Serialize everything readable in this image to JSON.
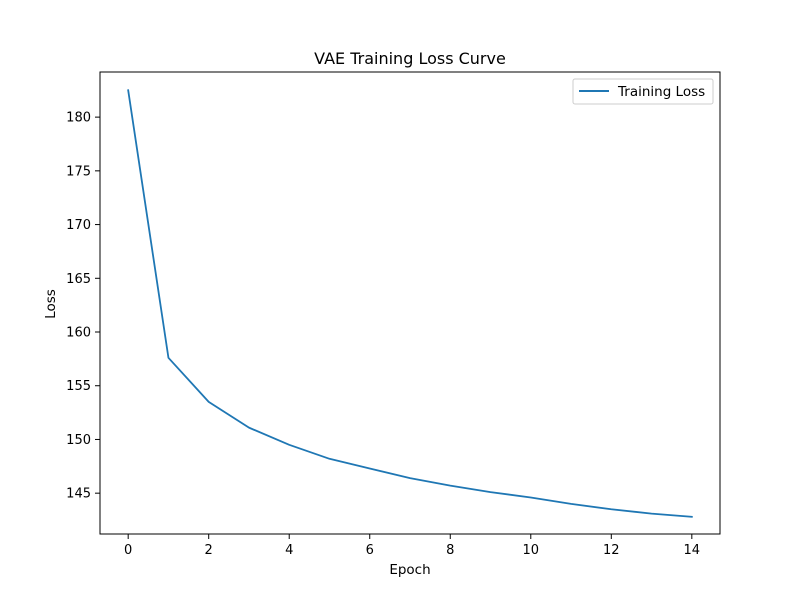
{
  "chart_data": {
    "type": "line",
    "title": "VAE Training Loss Curve",
    "xlabel": "Epoch",
    "ylabel": "Loss",
    "xlim": [
      -0.7,
      14.7
    ],
    "ylim": [
      141.2,
      184.2
    ],
    "x_ticks": [
      0,
      2,
      4,
      6,
      8,
      10,
      12,
      14
    ],
    "y_ticks": [
      145,
      150,
      155,
      160,
      165,
      170,
      175,
      180
    ],
    "grid": false,
    "legend_position": "top-right",
    "series": [
      {
        "name": "Training Loss",
        "color": "#1f77b4",
        "x": [
          0,
          1,
          2,
          3,
          4,
          5,
          6,
          7,
          8,
          9,
          10,
          11,
          12,
          13,
          14
        ],
        "y": [
          182.5,
          157.6,
          153.5,
          151.1,
          149.5,
          148.2,
          147.3,
          146.4,
          145.7,
          145.1,
          144.6,
          144.0,
          143.5,
          143.1,
          142.8
        ]
      }
    ]
  }
}
